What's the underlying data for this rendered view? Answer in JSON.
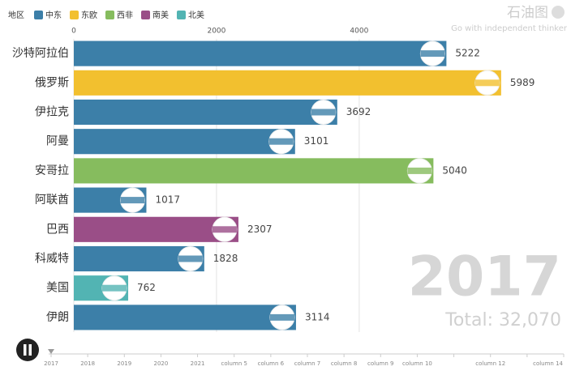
{
  "chart_data": {
    "type": "bar",
    "orientation": "horizontal",
    "legend_title": "地区",
    "legend": [
      {
        "name": "中东",
        "color": "#3c7fa8"
      },
      {
        "name": "东欧",
        "color": "#f2c02f"
      },
      {
        "name": "西非",
        "color": "#86bc5e"
      },
      {
        "name": "南美",
        "color": "#9a4e87"
      },
      {
        "name": "北美",
        "color": "#52b4b3"
      }
    ],
    "categories": [
      "沙特阿拉伯",
      "俄罗斯",
      "伊拉克",
      "阿曼",
      "安哥拉",
      "阿联酋",
      "巴西",
      "科威特",
      "美国",
      "伊朗"
    ],
    "values": [
      5222,
      5989,
      3692,
      3101,
      5040,
      1017,
      2307,
      1828,
      762,
      3114
    ],
    "regions": [
      "中东",
      "东欧",
      "中东",
      "中东",
      "西非",
      "中东",
      "南美",
      "中东",
      "北美",
      "中东"
    ],
    "xlim": [
      0,
      6900
    ],
    "xticks": [
      0,
      2000,
      4000
    ],
    "grid": true,
    "year": "2017",
    "total": "Total: 32,070",
    "watermark": "石油图",
    "watermark_sub": "Go with independent thinker",
    "timeline": [
      "2017",
      "2018",
      "2019",
      "2020",
      "2021",
      "column 5",
      "column 6",
      "column 7",
      "column 8",
      "column 9",
      "column 10",
      null,
      "column 12",
      null,
      "column 14"
    ]
  }
}
